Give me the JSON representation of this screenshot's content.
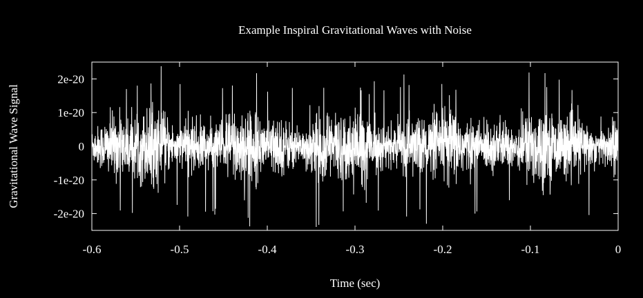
{
  "chart_data": {
    "type": "line",
    "title": "Example Inspiral Gravitational Waves with Noise",
    "xlabel": "Time (sec)",
    "ylabel": "Gravitational Wave Signal",
    "xlim": [
      -0.6,
      0
    ],
    "ylim": [
      -2.5e-20,
      2.5e-20
    ],
    "x_ticks": [
      -0.6,
      -0.5,
      -0.4,
      -0.3,
      -0.2,
      -0.1,
      0
    ],
    "x_tick_labels": [
      "-0.6",
      "-0.5",
      "-0.4",
      "-0.3",
      "-0.2",
      "-0.1",
      "0"
    ],
    "y_ticks": [
      2e-20,
      1e-20,
      0,
      -1e-20,
      -2e-20
    ],
    "y_tick_labels": [
      "2e-20",
      "1e-20",
      "0",
      "-1e-20",
      "-2e-20"
    ],
    "grid": false,
    "legend": "none",
    "series": [
      {
        "x": [
          -0.6,
          -0.5,
          -0.4,
          -0.3,
          -0.2,
          -0.1,
          0
        ],
        "y_range": [
          -2.2e-20,
          2.5e-20
        ],
        "description": "dense noisy strain signal oscillating around 0"
      }
    ]
  },
  "colors": {
    "background": "#000000",
    "foreground": "#ffffff"
  }
}
